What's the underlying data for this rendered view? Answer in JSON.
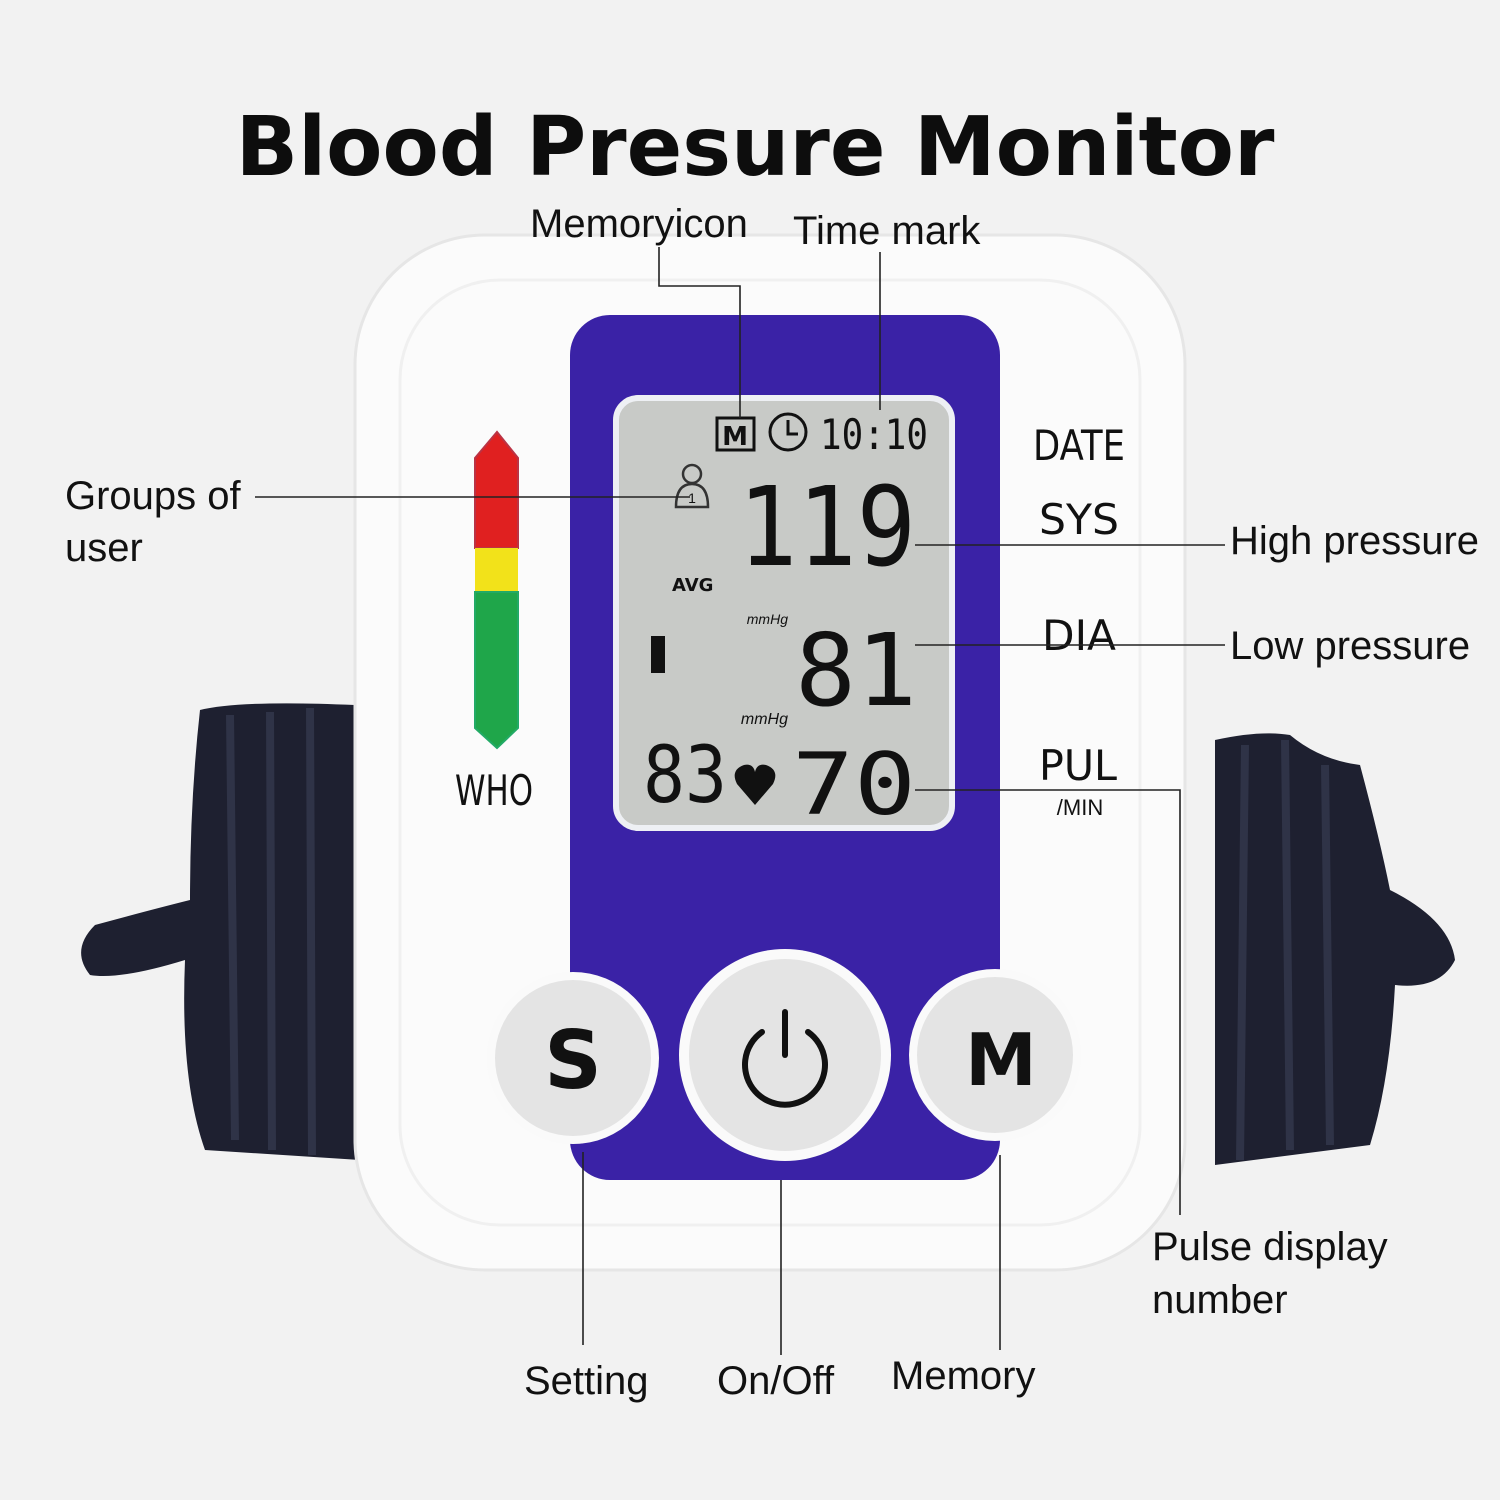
{
  "title": "Blood Presure Monitor",
  "callouts": {
    "memory_icon": "Memoryicon",
    "time_mark": "Time mark",
    "groups_of_user_line1": "Groups of",
    "groups_of_user_line2": "user",
    "high_pressure": "High pressure",
    "low_pressure": "Low pressure",
    "pulse_line1": "Pulse display",
    "pulse_line2": "number",
    "setting": "Setting",
    "on_off": "On/Off",
    "memory": "Memory"
  },
  "device": {
    "labels": {
      "date": "DATE",
      "sys": "SYS",
      "dia": "DIA",
      "pul": "PUL",
      "per_min": "/MIN",
      "who": "WHO"
    },
    "buttons": {
      "setting": "S",
      "power_icon": "power-icon",
      "memory": "M"
    },
    "panel_color": "#3a22a6",
    "who_scale_colors": [
      "#e02020",
      "#f2e21a",
      "#1fa64a"
    ]
  },
  "lcd": {
    "memory_badge": "M",
    "time": "10:10",
    "user_number": "1",
    "systolic": "119",
    "diastolic": "81",
    "pulse": "70",
    "avg_label": "AVG",
    "unit_sys": "mmHg",
    "unit_dia": "mmHg",
    "avg_pulse": "83"
  }
}
